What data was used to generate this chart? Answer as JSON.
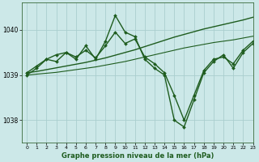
{
  "title": "Graphe pression niveau de la mer (hPa)",
  "bg_color": "#cce8e8",
  "line_color": "#1e5c1e",
  "grid_color": "#aacece",
  "xlim": [
    -0.5,
    23
  ],
  "ylim": [
    1037.5,
    1040.6
  ],
  "yticks": [
    1038,
    1039,
    1040
  ],
  "xticks": [
    0,
    1,
    2,
    3,
    4,
    5,
    6,
    7,
    8,
    9,
    10,
    11,
    12,
    13,
    14,
    15,
    16,
    17,
    18,
    19,
    20,
    21,
    22,
    23
  ],
  "series": [
    {
      "x": [
        0,
        1,
        2,
        3,
        4,
        5,
        6,
        7,
        8,
        9,
        10,
        11,
        12,
        13,
        14,
        15,
        16,
        17,
        18,
        19,
        20,
        21,
        22,
        23
      ],
      "y": [
        1039.05,
        1039.08,
        1039.12,
        1039.16,
        1039.2,
        1039.24,
        1039.28,
        1039.33,
        1039.38,
        1039.44,
        1039.5,
        1039.56,
        1039.63,
        1039.7,
        1039.77,
        1039.84,
        1039.9,
        1039.96,
        1040.02,
        1040.07,
        1040.12,
        1040.17,
        1040.22,
        1040.28
      ],
      "marker": false,
      "lw": 1.0
    },
    {
      "x": [
        0,
        1,
        2,
        3,
        4,
        5,
        6,
        7,
        8,
        9,
        10,
        11,
        12,
        13,
        14,
        15,
        16,
        17,
        18,
        19,
        20,
        21,
        22,
        23
      ],
      "y": [
        1039.0,
        1039.02,
        1039.04,
        1039.06,
        1039.09,
        1039.12,
        1039.15,
        1039.18,
        1039.22,
        1039.26,
        1039.3,
        1039.35,
        1039.4,
        1039.45,
        1039.5,
        1039.55,
        1039.6,
        1039.64,
        1039.68,
        1039.72,
        1039.75,
        1039.78,
        1039.82,
        1039.86
      ],
      "marker": false,
      "lw": 0.8
    },
    {
      "x": [
        0,
        1,
        2,
        3,
        4,
        5,
        6,
        7,
        8,
        9,
        10,
        11,
        12,
        13,
        14,
        15,
        16,
        17,
        18,
        19,
        20,
        21,
        22,
        23
      ],
      "y": [
        1039.05,
        1039.2,
        1039.35,
        1039.45,
        1039.5,
        1039.4,
        1039.55,
        1039.38,
        1039.65,
        1039.95,
        1039.7,
        1039.8,
        1039.4,
        1039.25,
        1039.05,
        1038.55,
        1038.0,
        1038.55,
        1039.1,
        1039.35,
        1039.4,
        1039.25,
        1039.55,
        1039.75
      ],
      "marker": true,
      "lw": 1.0
    },
    {
      "x": [
        0,
        1,
        2,
        3,
        4,
        5,
        6,
        7,
        8,
        9,
        10,
        11,
        12,
        13,
        14,
        15,
        16,
        17,
        18,
        19,
        20,
        21,
        22,
        23
      ],
      "y": [
        1039.0,
        1039.15,
        1039.35,
        1039.3,
        1039.5,
        1039.35,
        1039.65,
        1039.35,
        1039.75,
        1040.32,
        1039.95,
        1039.85,
        1039.35,
        1039.15,
        1039.0,
        1038.0,
        1037.85,
        1038.45,
        1039.05,
        1039.3,
        1039.45,
        1039.15,
        1039.5,
        1039.7
      ],
      "marker": true,
      "lw": 1.0
    }
  ]
}
